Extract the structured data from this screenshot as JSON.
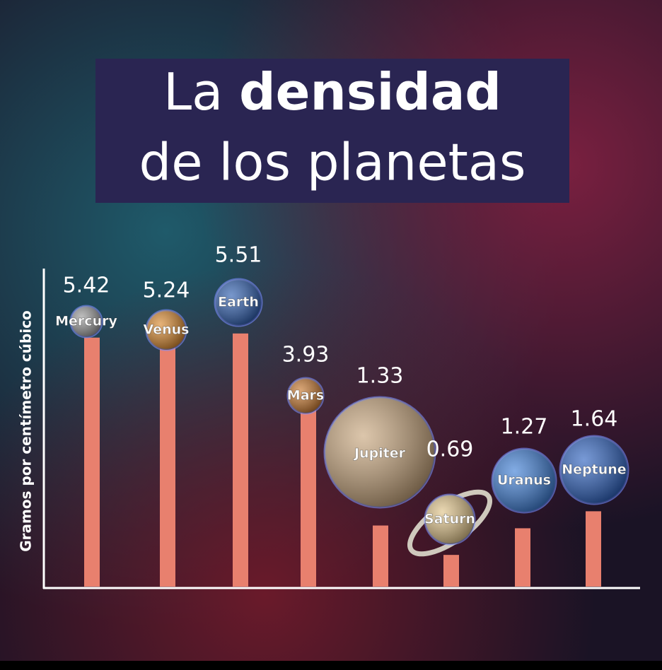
{
  "chart_data": {
    "type": "bar",
    "title": {
      "normal": "La",
      "bold": "densidad",
      "line2": "de los planetas"
    },
    "y_label": "Gramos por centímetro cúbico",
    "categories": [
      "Mercury",
      "Venus",
      "Earth",
      "Mars",
      "Jupiter",
      "Saturn",
      "Uranus",
      "Neptune"
    ],
    "values": [
      5.42,
      5.24,
      5.51,
      3.93,
      1.33,
      0.69,
      1.27,
      1.64
    ],
    "color": "#e8806e",
    "planet_colors": [
      "#9a9a9a",
      "#d9892f",
      "#2f5fb0",
      "#c7782f",
      "#c9a77e",
      "#e0c48a",
      "#3f7fd6",
      "#2f63c0"
    ],
    "ylim": [
      0,
      7
    ]
  }
}
